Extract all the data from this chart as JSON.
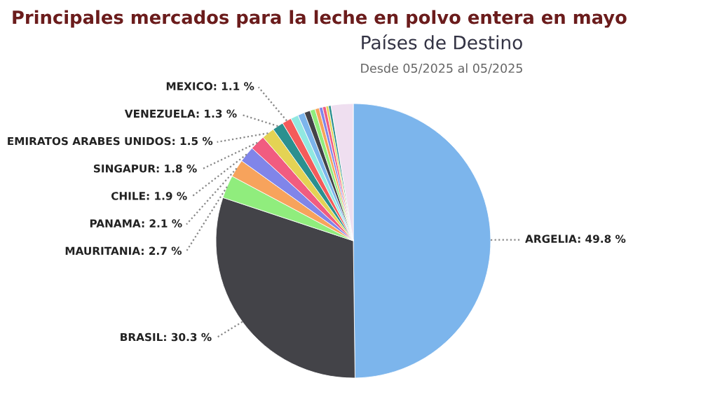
{
  "chart_data": {
    "type": "pie",
    "title": "Principales mercados para la leche en polvo entera en mayo",
    "subtitle": "Países de Destino",
    "annotations": [
      "Desde 05/2025 al 05/2025"
    ],
    "categories": [
      "ARGELIA",
      "BRASIL",
      "MAURITANIA",
      "PANAMA",
      "CHILE",
      "SINGAPUR",
      "EMIRATOS ARABES UNIDOS",
      "VENEZUELA",
      "MEXICO",
      null,
      null,
      null,
      null,
      null,
      null,
      null,
      null,
      null,
      null
    ],
    "values": [
      49.8,
      30.3,
      2.7,
      2.1,
      1.9,
      1.8,
      1.5,
      1.3,
      1.1,
      0.9,
      0.8,
      0.7,
      0.6,
      0.5,
      0.4,
      0.4,
      0.3,
      0.3,
      2.6
    ],
    "value_labels": [
      "49.8 %",
      "30.3 %",
      "2.7 %",
      "2.1 %",
      "1.9 %",
      "1.8 %",
      "1.5 %",
      "1.3 %",
      "1.1 %",
      null,
      null,
      null,
      null,
      null,
      null,
      null,
      null,
      null,
      null
    ],
    "colors": [
      "#7cb5ec",
      "#434348",
      "#90ed7d",
      "#f7a35c",
      "#8085e9",
      "#f15c80",
      "#e4d354",
      "#2b908f",
      "#f45b5b",
      "#91e8e1",
      "#7cb5ec",
      "#434348",
      "#90ed7d",
      "#f7a35c",
      "#8085e9",
      "#f15c80",
      "#e4d354",
      "#2b908f",
      "#efdff0"
    ]
  }
}
